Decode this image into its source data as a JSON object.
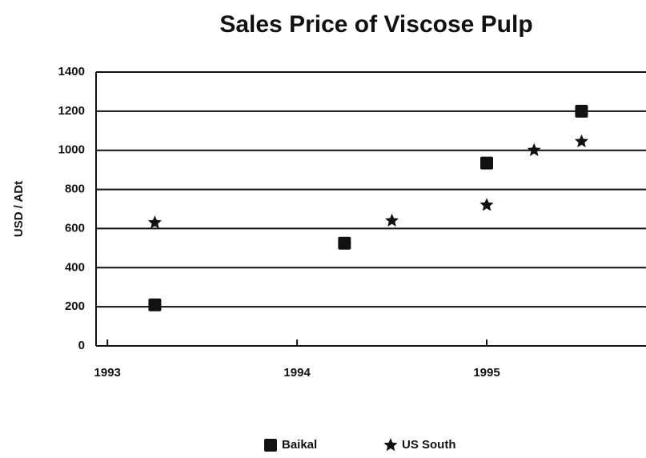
{
  "chart_data": {
    "type": "scatter",
    "title": "Sales Price of Viscose Pulp",
    "ylabel": "USD / ADt",
    "series": [
      {
        "name": "Baikal",
        "color": "#111111",
        "marker": "square",
        "x": [
          1993.25,
          1994.25,
          1995.0,
          1995.5
        ],
        "values": [
          210,
          525,
          935,
          1200
        ]
      },
      {
        "name": "US South",
        "color": "#111111",
        "marker": "star",
        "x": [
          1993.25,
          1994.5,
          1995.0,
          1995.25,
          1995.5
        ],
        "values": [
          630,
          640,
          720,
          1000,
          1045
        ]
      }
    ],
    "xlim": [
      1992.94,
      1995.84
    ],
    "xticks": [
      1993,
      1994,
      1995
    ],
    "ylim": [
      0,
      1400
    ],
    "yticks": [
      0,
      200,
      400,
      600,
      800,
      1000,
      1200,
      1400
    ],
    "grid": true,
    "legend": "bottom"
  }
}
